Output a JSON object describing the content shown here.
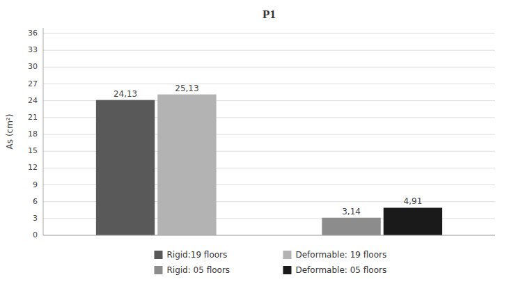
{
  "chart_data": {
    "type": "bar",
    "title": "P1",
    "ylabel": "As (cm²)",
    "categories": [
      null,
      null
    ],
    "series": [
      {
        "name": "Rigid:19 floors",
        "color": "#595959",
        "values": [
          24.13,
          null
        ],
        "value_labels": [
          "24,13",
          null
        ]
      },
      {
        "name": "Deformable: 19 floors",
        "color": "#b3b3b3",
        "values": [
          25.13,
          null
        ],
        "value_labels": [
          "25,13",
          null
        ]
      },
      {
        "name": "Rigid: 05 floors",
        "color": "#8c8c8c",
        "values": [
          null,
          3.14
        ],
        "value_labels": [
          null,
          "3,14"
        ]
      },
      {
        "name": "Deformable: 05 floors",
        "color": "#1a1a1a",
        "values": [
          null,
          4.91
        ],
        "value_labels": [
          null,
          "4,91"
        ]
      }
    ],
    "ylim": [
      0,
      37
    ],
    "yticks": [
      0,
      3,
      6,
      9,
      12,
      15,
      18,
      21,
      24,
      27,
      30,
      33,
      36
    ],
    "grid": true,
    "legend": "bottom",
    "data_labels": true
  }
}
